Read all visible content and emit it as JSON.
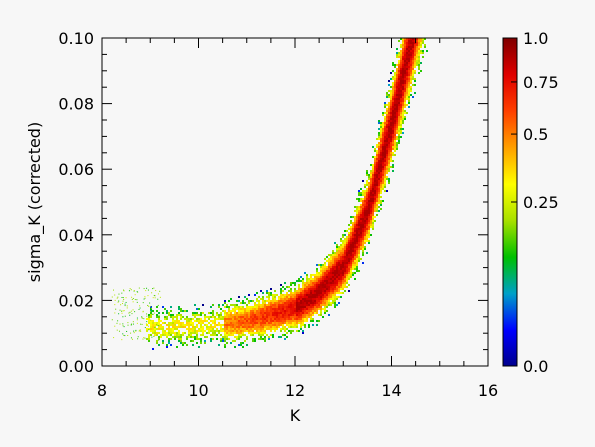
{
  "chart_data": {
    "type": "heatmap",
    "title": "",
    "xlabel": "K",
    "ylabel": "sigma_K (corrected)",
    "xlim": [
      8,
      16
    ],
    "ylim": [
      0.0,
      0.1
    ],
    "x_ticks": [
      8,
      10,
      12,
      14,
      16
    ],
    "y_ticks": [
      0.0,
      0.02,
      0.04,
      0.06,
      0.08,
      0.1
    ],
    "x_tick_labels": [
      "8",
      "10",
      "12",
      "14",
      "16"
    ],
    "y_tick_labels": [
      "0.00",
      "0.02",
      "0.04",
      "0.06",
      "0.08",
      "0.10"
    ],
    "grid": false,
    "colorbar": {
      "range": [
        0.0,
        1.0
      ],
      "tick_values": [
        0.0,
        0.25,
        0.5,
        0.75,
        1.0
      ],
      "tick_labels": [
        "0.0",
        "0.25",
        "0.5",
        "0.75",
        "1.0"
      ],
      "scale": "sqrt",
      "colormap": [
        "#00008b",
        "#0000ff",
        "#00a0c8",
        "#00c000",
        "#a8e000",
        "#ffff00",
        "#ffa000",
        "#ff4000",
        "#e00000",
        "#800000"
      ]
    },
    "ridge": {
      "description_values": [
        {
          "K": 9.0,
          "sigma": 0.012
        },
        {
          "K": 10.0,
          "sigma": 0.0125
        },
        {
          "K": 11.0,
          "sigma": 0.014
        },
        {
          "K": 12.0,
          "sigma": 0.018
        },
        {
          "K": 12.5,
          "sigma": 0.023
        },
        {
          "K": 13.0,
          "sigma": 0.031
        },
        {
          "K": 13.5,
          "sigma": 0.048
        },
        {
          "K": 14.0,
          "sigma": 0.075
        },
        {
          "K": 14.4,
          "sigma": 0.1
        }
      ]
    }
  }
}
